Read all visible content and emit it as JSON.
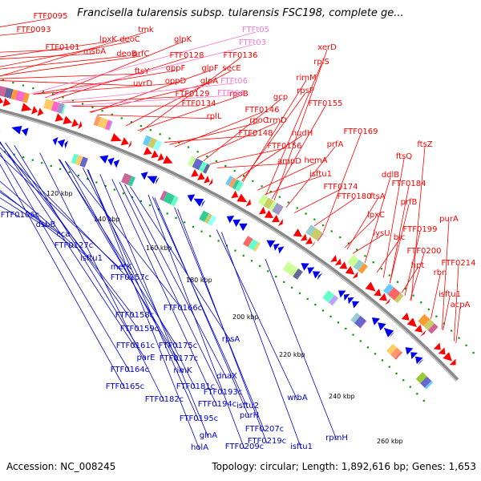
{
  "header": {
    "title": "Francisella tularensis subsp. tularensis FSC198, complete ge..."
  },
  "footer": {
    "accession": "Accession: NC_008245",
    "stats": "Topology: circular; Length: 1,892,616 bp; Genes: 1,653"
  },
  "colors": {
    "forward_label": "#ff0000",
    "reverse_label": "#0000cc",
    "rna_label": "#ff77cc",
    "backbone": "#888888",
    "scale_dot": "#009900"
  },
  "kbp_ticks": [
    "120 kbp",
    "140 kbp",
    "160 kbp",
    "180 kbp",
    "200 kbp",
    "220 kbp",
    "240 kbp",
    "260 kbp"
  ],
  "forward_labels": [
    "FTF0095",
    "FTF0093",
    "FTF0101",
    "lpxK",
    "msbA",
    "deoC",
    "deoB",
    "tmk",
    "prfC",
    "ftsY",
    "uvrD",
    "glpK",
    "FTF0128",
    "oppF",
    "oppD",
    "glpF",
    "glpA",
    "secE",
    "FTF0136",
    "FTF0129",
    "FTF0134",
    "rplL",
    "rpoB",
    "xerD",
    "rplS",
    "rimM",
    "rpsP",
    "gcp",
    "FTF0155",
    "FTF0146",
    "rpoC",
    "trmD",
    "FTF0148",
    "nudH",
    "FTF0156",
    "ampD",
    "FTF0169",
    "prfA",
    "hemA",
    "isftu1",
    "FTF0174",
    "ftsZ",
    "ftsQ",
    "ddlB",
    "FTF0184",
    "FTF0180",
    "ftsA",
    "prfB",
    "lpxC",
    "lysU",
    "purA",
    "FTF0199",
    "blc",
    "FTF0200",
    "FTF0214",
    "hpt",
    "rbn",
    "isftu1",
    "acpA"
  ],
  "rna_labels": [
    "FTFt05",
    "FTFt03",
    "FTFt06",
    "FTFt04"
  ],
  "reverse_labels": [
    "FTF0106c",
    "dsbB",
    "cca",
    "FTF0127c",
    "isftu1",
    "metK",
    "FTF0157c",
    "FTF0158c",
    "FTF0166c",
    "FTF0159c",
    "rpsA",
    "FTF0161c",
    "FTF0175c",
    "parE",
    "FTF0177c",
    "FTF0164c",
    "rimK",
    "dnaX",
    "FTF0165c",
    "FTF0181c",
    "FTF0193c",
    "FTF0182c",
    "FTF0194c",
    "isftu2",
    "wrbA",
    "FTF0195c",
    "purH",
    "FTF0207c",
    "glnA",
    "holA",
    "FTF0209c",
    "FTF0219c",
    "isftu1",
    "rpmH"
  ]
}
